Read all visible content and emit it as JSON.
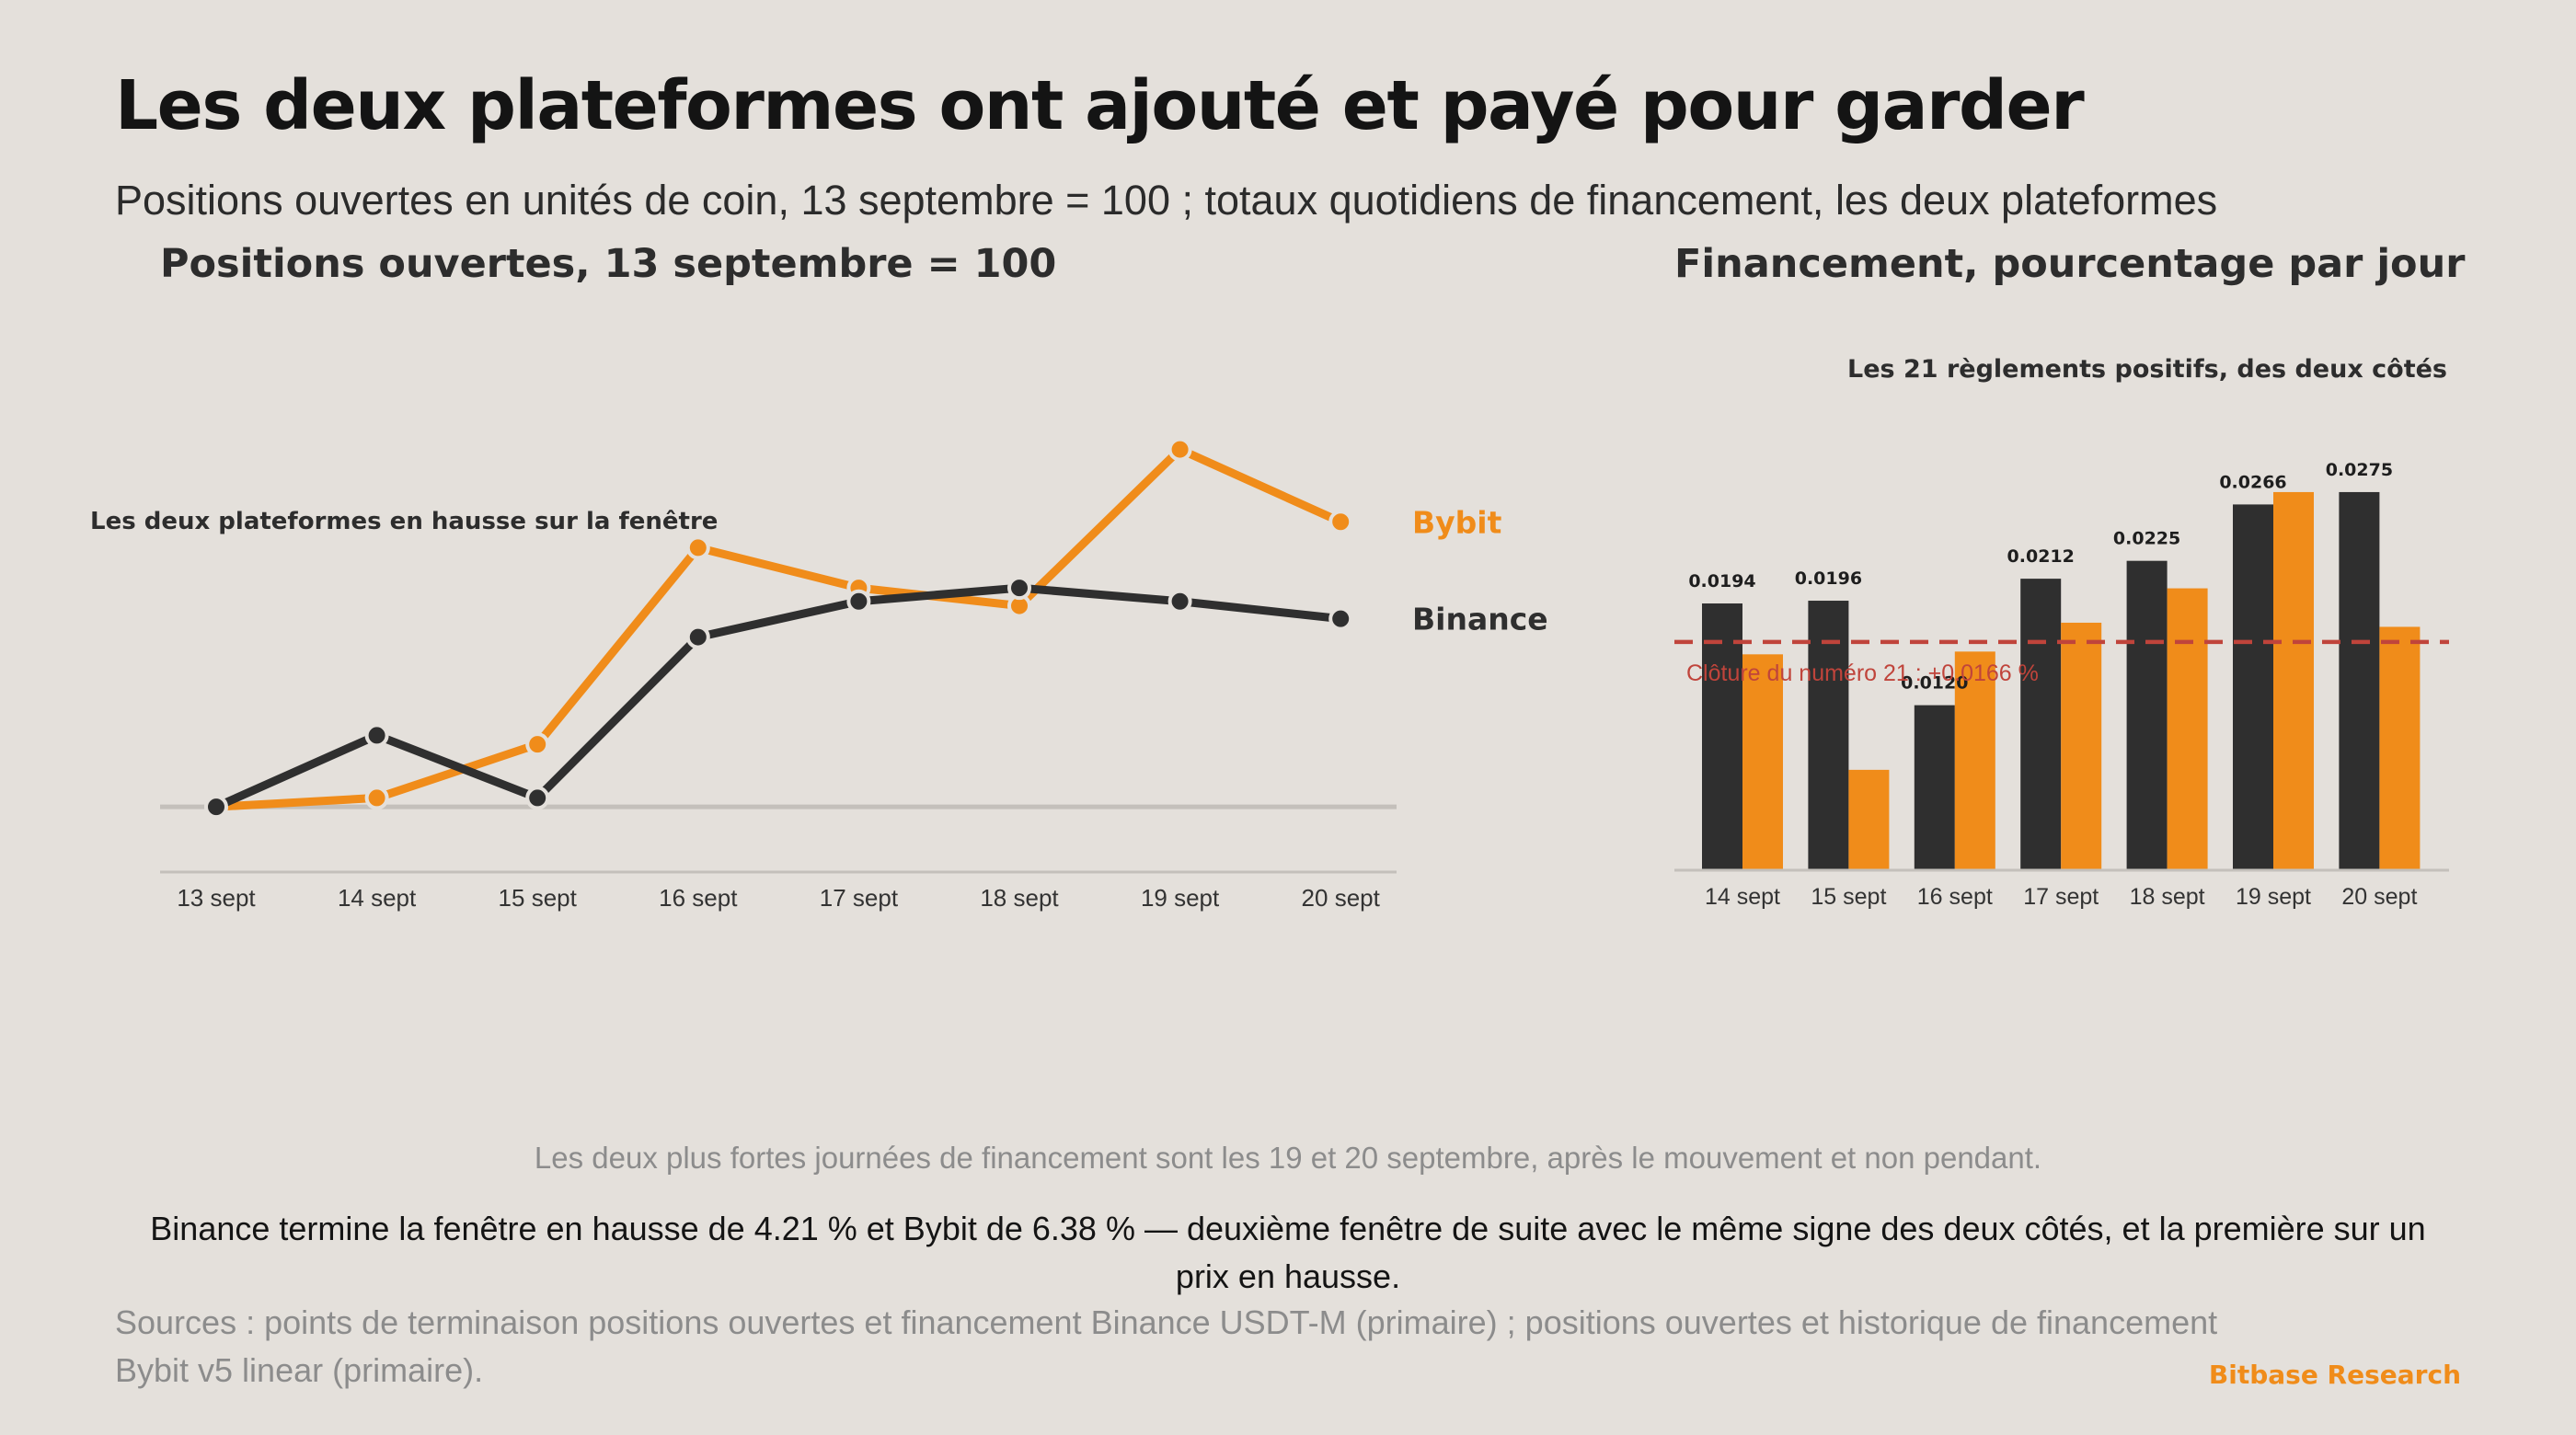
{
  "header": {
    "title": "Les deux plateformes ont ajouté et payé pour garder",
    "subtitle": "Positions ouvertes en unités de coin, 13 septembre = 100 ; totaux quotidiens de financement, les deux plateformes"
  },
  "colors": {
    "binance": "#2f2f2f",
    "bybit": "#f08c1a",
    "reference": "#c0443b",
    "background": "#e4e0db"
  },
  "chart_data": [
    {
      "type": "line",
      "title": "Positions ouvertes, 13 septembre = 100",
      "annotation": "Les deux plateformes en hausse sur la fenêtre",
      "categories": [
        "13 sept",
        "14 sept",
        "15 sept",
        "16 sept",
        "17 sept",
        "18 sept",
        "19 sept",
        "20 sept"
      ],
      "series": [
        {
          "name": "Bybit",
          "values": [
            100.0,
            100.2,
            101.4,
            105.8,
            104.9,
            104.5,
            108.0,
            106.38
          ]
        },
        {
          "name": "Binance",
          "values": [
            100.0,
            101.6,
            100.2,
            103.8,
            104.6,
            104.9,
            104.6,
            104.21
          ]
        }
      ],
      "baseline": 100,
      "ylim": [
        98.5,
        109
      ],
      "grid": false,
      "legend": "inline-right"
    },
    {
      "type": "bar",
      "title": "Financement, pourcentage par jour",
      "annotation": "Les 21 règlements positifs, des deux côtés",
      "categories": [
        "14 sept",
        "15 sept",
        "16 sept",
        "17 sept",
        "18 sept",
        "19 sept",
        "20 sept"
      ],
      "series": [
        {
          "name": "Binance",
          "values": [
            0.0194,
            0.0196,
            0.012,
            0.0212,
            0.0225,
            0.0266,
            0.0275
          ]
        },
        {
          "name": "Bybit",
          "values": [
            0.0157,
            0.0073,
            0.0159,
            0.018,
            0.0205,
            0.0275,
            0.0177
          ]
        }
      ],
      "data_labels": [
        "0.0194",
        "0.0196",
        "0.0120",
        "0.0212",
        "0.0225",
        "0.0266",
        "0.0275"
      ],
      "reference_line": {
        "value": 0.0166,
        "label": "Clôture du numéro 21 : +0.0166 %"
      },
      "ylim": [
        0,
        0.0285
      ],
      "grid": false
    }
  ],
  "footer": {
    "footnote": "Les deux plus fortes journées de financement sont les 19 et 20 septembre, après le mouvement et non pendant.",
    "summary": "Binance termine la fenêtre en hausse de 4.21 % et Bybit de 6.38 % — deuxième fenêtre de suite avec le même signe des deux côtés, et la première sur un prix en hausse.",
    "sources": "Sources : points de terminaison positions ouvertes et financement Binance USDT-M (primaire) ; positions ouvertes et historique de financement Bybit v5 linear (primaire).",
    "brand": "Bitbase Research"
  }
}
